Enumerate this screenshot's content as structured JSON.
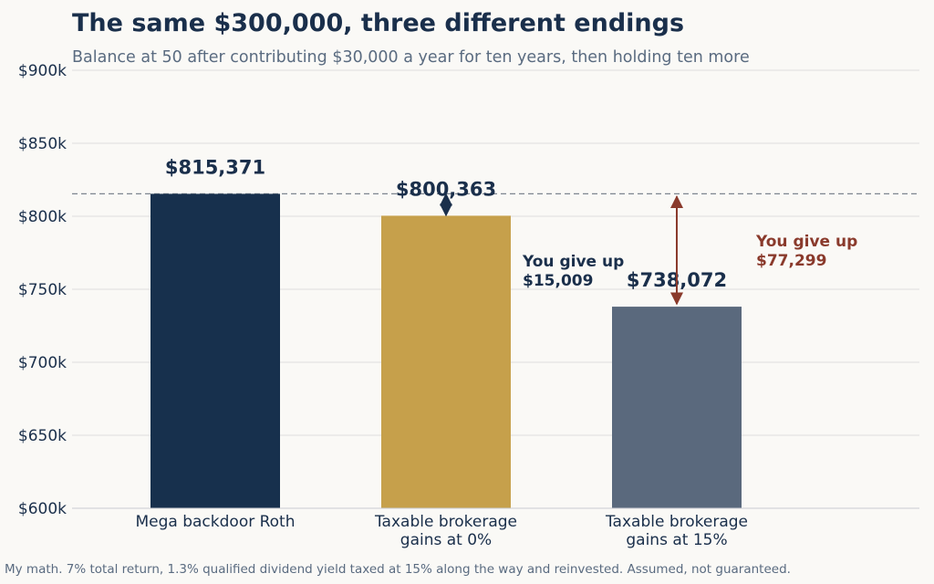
{
  "header": {
    "title": "The same $300,000, three different endings",
    "subtitle": "Balance at 50 after contributing $30,000 a year for ten years, then holding ten more"
  },
  "footnote": "My math. 7% total return, 1.3% qualified dividend yield taxed at 15% along the way and reinvested. Assumed, not guaranteed.",
  "colors": {
    "navy": "#17304d",
    "gold": "#c6a04b",
    "slate": "#5a697d",
    "rust": "#8a3a2c",
    "text": "#1a2f4b",
    "grid": "#dddddd",
    "reference_line": "#7d8590"
  },
  "chart_data": {
    "type": "bar",
    "categories": [
      [
        "Mega backdoor Roth"
      ],
      [
        "Taxable brokerage",
        "gains at 0%"
      ],
      [
        "Taxable brokerage",
        "gains at 15%"
      ]
    ],
    "values": [
      815371,
      800363,
      738072
    ],
    "data_labels": [
      "$815,371",
      "$800,363",
      "$738,072"
    ],
    "bar_colors": [
      "#17304d",
      "#c6a04b",
      "#5a697d"
    ],
    "ylim": [
      600000,
      900000
    ],
    "yticks": [
      600000,
      650000,
      700000,
      750000,
      800000,
      850000,
      900000
    ],
    "ytick_labels": [
      "$600k",
      "$650k",
      "$700k",
      "$750k",
      "$800k",
      "$850k",
      "$900k"
    ],
    "grid": true,
    "reference_line": {
      "value": 815371,
      "style": "dashed"
    },
    "annotations": [
      {
        "lines": [
          "You give up",
          "$15,009"
        ],
        "from_value": 815371,
        "to_value": 800363,
        "bar_index": 1,
        "color": "#1a2f4b"
      },
      {
        "lines": [
          "You give up",
          "$77,299"
        ],
        "from_value": 815371,
        "to_value": 738072,
        "bar_index": 2,
        "color": "#8a3a2c"
      }
    ]
  }
}
